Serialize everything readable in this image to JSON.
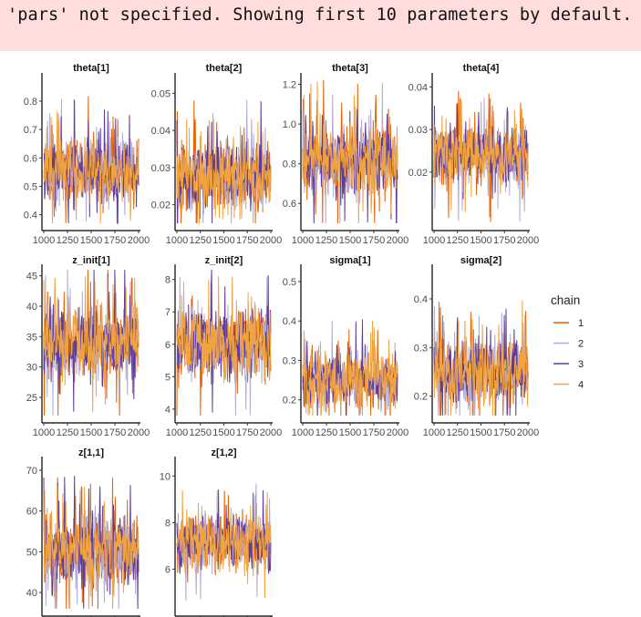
{
  "warning": {
    "text": "'pars' not specified. Showing first 10 parameters by default."
  },
  "colors": {
    "chains": [
      "#e66101",
      "#b2abd2",
      "#5e3c99",
      "#f1a340"
    ],
    "axis": "#000000",
    "tick_text": "#4d4d4d"
  },
  "legend": {
    "title": "chain",
    "entries": [
      "1",
      "2",
      "3",
      "4"
    ],
    "placement": "right"
  },
  "chart_data": {
    "type": "line",
    "layout": "trace plot grid, 4 columns",
    "x_ticks": [
      1000,
      1250,
      1500,
      1750,
      2000
    ],
    "xlim": [
      1000,
      2000
    ],
    "grid": false,
    "panels": [
      {
        "title": "theta[1]",
        "ylim": [
          0.37,
          0.88
        ],
        "y_ticks": [
          0.4,
          0.5,
          0.6,
          0.7,
          0.8
        ],
        "y_labels": [
          "0.4",
          "0.5",
          "0.6",
          "0.7",
          "0.8"
        ],
        "center": 0.55,
        "spread": 0.06
      },
      {
        "title": "theta[2]",
        "ylim": [
          0.015,
          0.054
        ],
        "y_ticks": [
          0.02,
          0.03,
          0.04,
          0.05
        ],
        "y_labels": [
          "0.02",
          "0.03",
          "0.04",
          "0.05"
        ],
        "center": 0.028,
        "spread": 0.0045
      },
      {
        "title": "theta[3]",
        "ylim": [
          0.5,
          1.23
        ],
        "y_ticks": [
          0.6,
          0.8,
          1.0,
          1.2
        ],
        "y_labels": [
          "0.6",
          "0.8",
          "1.0",
          "1.2"
        ],
        "center": 0.82,
        "spread": 0.09
      },
      {
        "title": "theta[4]",
        "ylim": [
          0.008,
          0.042
        ],
        "y_ticks": [
          0.02,
          0.03,
          0.04
        ],
        "y_labels": [
          "0.02",
          "0.03",
          "0.04"
        ],
        "center": 0.024,
        "spread": 0.0035
      },
      {
        "title": "z_init[1]",
        "ylim": [
          22,
          46
        ],
        "y_ticks": [
          25,
          30,
          35,
          40,
          45
        ],
        "y_labels": [
          "25",
          "30",
          "35",
          "40",
          "45"
        ],
        "center": 34,
        "spread": 3
      },
      {
        "title": "z_init[2]",
        "ylim": [
          3.8,
          8.3
        ],
        "y_ticks": [
          4,
          5,
          6,
          7,
          8
        ],
        "y_labels": [
          "4",
          "5",
          "6",
          "7",
          "8"
        ],
        "center": 6,
        "spread": 0.55
      },
      {
        "title": "sigma[1]",
        "ylim": [
          0.16,
          0.53
        ],
        "y_ticks": [
          0.2,
          0.3,
          0.4,
          0.5
        ],
        "y_labels": [
          "0.2",
          "0.3",
          "0.4",
          "0.5"
        ],
        "center": 0.25,
        "spread": 0.035
      },
      {
        "title": "sigma[2]",
        "ylim": [
          0.16,
          0.46
        ],
        "y_ticks": [
          0.2,
          0.3,
          0.4
        ],
        "y_labels": [
          "0.2",
          "0.3",
          "0.4"
        ],
        "center": 0.25,
        "spread": 0.035
      },
      {
        "title": "z[1,1]",
        "ylim": [
          36,
          72
        ],
        "y_ticks": [
          40,
          50,
          60,
          70
        ],
        "y_labels": [
          "40",
          "50",
          "60",
          "70"
        ],
        "center": 50,
        "spread": 4.5
      },
      {
        "title": "z[1,2]",
        "ylim": [
          4.3,
          10.6
        ],
        "y_ticks": [
          6,
          8,
          10
        ],
        "y_labels": [
          "6",
          "8",
          "10"
        ],
        "center": 7.1,
        "spread": 0.6
      }
    ]
  }
}
